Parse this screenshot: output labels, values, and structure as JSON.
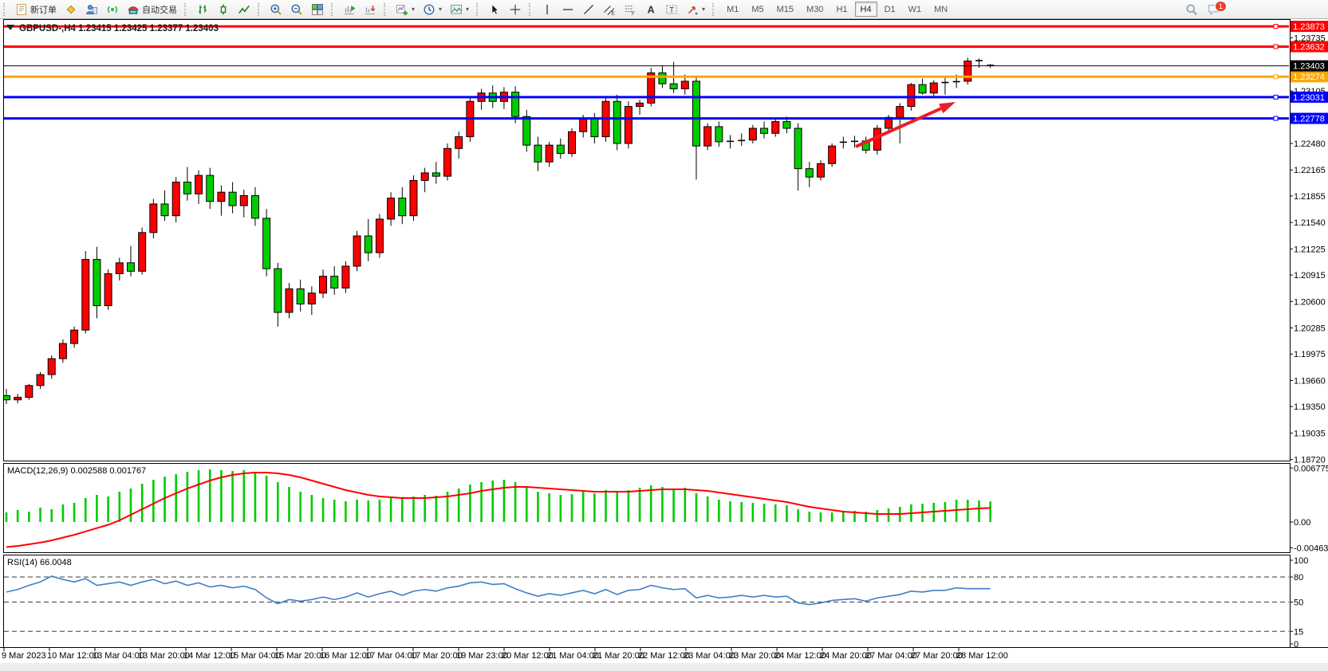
{
  "toolbar": {
    "new_order_label": "新订单",
    "autotrading_label": "自动交易",
    "timeframes": [
      "M1",
      "M5",
      "M15",
      "M30",
      "H1",
      "H4",
      "D1",
      "W1",
      "MN"
    ],
    "active_timeframe": "H4",
    "notification_badge": "1"
  },
  "chart": {
    "title": "GBPUSD-,H4",
    "ohlc_readout": "1.23415 1.23425 1.23377 1.23403"
  },
  "chart_data": {
    "type": "candlestick",
    "symbol": "GBPUSD-",
    "timeframe": "H4",
    "title": "GBPUSD-,H4 1.23415 1.23425 1.23377 1.23403",
    "colors": {
      "up": "#ff0000",
      "down": "#00cc00",
      "wick": "#000000"
    },
    "ohlc": [
      [
        1.1948,
        1.1956,
        1.1938,
        1.1943
      ],
      [
        1.1943,
        1.195,
        1.1939,
        1.1946
      ],
      [
        1.1946,
        1.1962,
        1.1943,
        1.196
      ],
      [
        1.196,
        1.1976,
        1.1956,
        1.1973
      ],
      [
        1.1973,
        1.1996,
        1.1968,
        1.1992
      ],
      [
        1.1992,
        1.2015,
        1.1987,
        1.201
      ],
      [
        1.201,
        1.203,
        1.2005,
        1.2026
      ],
      [
        1.2026,
        1.212,
        1.2022,
        1.211
      ],
      [
        1.211,
        1.2125,
        1.204,
        1.2055
      ],
      [
        1.2055,
        1.2098,
        1.205,
        1.2093
      ],
      [
        1.2093,
        1.2112,
        1.2085,
        1.2106
      ],
      [
        1.2106,
        1.2126,
        1.209,
        1.2096
      ],
      [
        1.2096,
        1.2148,
        1.2092,
        1.2142
      ],
      [
        1.2142,
        1.2182,
        1.2135,
        1.2176
      ],
      [
        1.2176,
        1.2192,
        1.2156,
        1.2162
      ],
      [
        1.2162,
        1.2208,
        1.2154,
        1.2202
      ],
      [
        1.2202,
        1.222,
        1.218,
        1.2188
      ],
      [
        1.2188,
        1.2216,
        1.2176,
        1.221
      ],
      [
        1.221,
        1.2219,
        1.217,
        1.2179
      ],
      [
        1.2179,
        1.2198,
        1.2162,
        1.219
      ],
      [
        1.219,
        1.2202,
        1.2165,
        1.2174
      ],
      [
        1.2174,
        1.2193,
        1.216,
        1.2186
      ],
      [
        1.2186,
        1.2196,
        1.215,
        1.2159
      ],
      [
        1.2159,
        1.217,
        1.209,
        1.2099
      ],
      [
        1.2099,
        1.2106,
        1.203,
        1.2047
      ],
      [
        1.2047,
        1.2082,
        1.204,
        1.2075
      ],
      [
        1.2075,
        1.2086,
        1.2048,
        1.2057
      ],
      [
        1.2057,
        1.2078,
        1.2044,
        1.207
      ],
      [
        1.207,
        1.2098,
        1.2064,
        1.209
      ],
      [
        1.209,
        1.2102,
        1.2068,
        1.2076
      ],
      [
        1.2076,
        1.2108,
        1.207,
        1.2102
      ],
      [
        1.2102,
        1.2144,
        1.2096,
        1.2138
      ],
      [
        1.2138,
        1.2158,
        1.2108,
        1.2118
      ],
      [
        1.2118,
        1.2164,
        1.2112,
        1.2158
      ],
      [
        1.2158,
        1.219,
        1.215,
        1.2183
      ],
      [
        1.2183,
        1.2196,
        1.2152,
        1.2162
      ],
      [
        1.2162,
        1.221,
        1.2156,
        1.2204
      ],
      [
        1.2204,
        1.2219,
        1.219,
        1.2213
      ],
      [
        1.2213,
        1.2226,
        1.22,
        1.2209
      ],
      [
        1.2209,
        1.2248,
        1.2204,
        1.2242
      ],
      [
        1.2242,
        1.2262,
        1.223,
        1.2256
      ],
      [
        1.2256,
        1.2304,
        1.225,
        1.2298
      ],
      [
        1.2298,
        1.2313,
        1.2288,
        1.2308
      ],
      [
        1.2308,
        1.2317,
        1.229,
        1.2298
      ],
      [
        1.2298,
        1.2315,
        1.2289,
        1.2309
      ],
      [
        1.2309,
        1.2316,
        1.2272,
        1.228
      ],
      [
        1.228,
        1.2288,
        1.2238,
        1.2246
      ],
      [
        1.2246,
        1.2256,
        1.2215,
        1.2226
      ],
      [
        1.2226,
        1.225,
        1.222,
        1.2246
      ],
      [
        1.2246,
        1.2254,
        1.223,
        1.2236
      ],
      [
        1.2236,
        1.2266,
        1.2232,
        1.2262
      ],
      [
        1.2262,
        1.2282,
        1.2255,
        1.2278
      ],
      [
        1.2278,
        1.2284,
        1.2248,
        1.2256
      ],
      [
        1.2256,
        1.2304,
        1.225,
        1.2298
      ],
      [
        1.2298,
        1.2306,
        1.224,
        1.2248
      ],
      [
        1.2248,
        1.2298,
        1.2242,
        1.2292
      ],
      [
        1.2292,
        1.23,
        1.2282,
        1.2296
      ],
      [
        1.2296,
        1.2338,
        1.2292,
        1.2332
      ],
      [
        1.2332,
        1.234,
        1.2314,
        1.2319
      ],
      [
        1.2319,
        1.2345,
        1.2308,
        1.2313
      ],
      [
        1.2313,
        1.233,
        1.2306,
        1.2322
      ],
      [
        1.2322,
        1.2328,
        1.2205,
        1.2245
      ],
      [
        1.2245,
        1.2272,
        1.224,
        1.2268
      ],
      [
        1.2268,
        1.2274,
        1.2244,
        1.225
      ],
      [
        1.225,
        1.2258,
        1.2242,
        1.2251
      ],
      [
        1.2251,
        1.226,
        1.2245,
        1.2252
      ],
      [
        1.2252,
        1.227,
        1.2248,
        1.2266
      ],
      [
        1.2266,
        1.2274,
        1.2254,
        1.226
      ],
      [
        1.226,
        1.2278,
        1.2256,
        1.2274
      ],
      [
        1.2274,
        1.228,
        1.226,
        1.2266
      ],
      [
        1.2266,
        1.2272,
        1.2192,
        1.2218
      ],
      [
        1.2218,
        1.2226,
        1.2196,
        1.2208
      ],
      [
        1.2208,
        1.2228,
        1.2204,
        1.2224
      ],
      [
        1.2224,
        1.2248,
        1.222,
        1.2245
      ],
      [
        1.2249,
        1.2256,
        1.2242,
        1.225
      ],
      [
        1.225,
        1.2257,
        1.2243,
        1.2251
      ],
      [
        1.2251,
        1.2256,
        1.2236,
        1.224
      ],
      [
        1.224,
        1.227,
        1.2235,
        1.2266
      ],
      [
        1.2266,
        1.2282,
        1.2262,
        1.2279
      ],
      [
        1.2279,
        1.2296,
        1.2248,
        1.2292
      ],
      [
        1.2292,
        1.232,
        1.2287,
        1.2318
      ],
      [
        1.2318,
        1.2325,
        1.2306,
        1.2308
      ],
      [
        1.2308,
        1.2323,
        1.2302,
        1.232
      ],
      [
        1.232,
        1.2328,
        1.2306,
        1.2321
      ],
      [
        1.2321,
        1.233,
        1.2314,
        1.2322
      ],
      [
        1.2322,
        1.235,
        1.2318,
        1.2346
      ],
      [
        1.2346,
        1.2349,
        1.2338,
        1.2347
      ],
      [
        1.23415,
        1.23425,
        1.23377,
        1.23403
      ]
    ],
    "price_ticks": [
      "1.23735",
      "1.23105",
      "1.22480",
      "1.22165",
      "1.21855",
      "1.21540",
      "1.21225",
      "1.20915",
      "1.20600",
      "1.20285",
      "1.19975",
      "1.19660",
      "1.19350",
      "1.19035",
      "1.18720"
    ],
    "hlines": [
      {
        "price": 1.23873,
        "label": "1.23873",
        "color": "#ff0000"
      },
      {
        "price": 1.23632,
        "label": "1.23632",
        "color": "#ff0000"
      },
      {
        "price": 1.23274,
        "label": "1.23274",
        "color": "#ffa500"
      },
      {
        "price": 1.23031,
        "label": "1.23031",
        "color": "#0000ff"
      },
      {
        "price": 1.22778,
        "label": "1.22778",
        "color": "#0000ff"
      }
    ],
    "current_price": {
      "price": 1.23403,
      "label": "1.23403",
      "color": "#000000"
    },
    "trend_arrow": {
      "from": [
        1073,
        184
      ],
      "to": [
        1198,
        128
      ],
      "color": "#ee1c25"
    },
    "time_labels": [
      "9 Mar 2023",
      "10 Mar 12:00",
      "13 Mar 04:00",
      "13 Mar 20:00",
      "14 Mar 12:00",
      "15 Mar 04:00",
      "15 Mar 20:00",
      "16 Mar 12:00",
      "17 Mar 04:00",
      "17 Mar 20:00",
      "19 Mar 23:00",
      "20 Mar 12:00",
      "21 Mar 04:00",
      "21 Mar 20:00",
      "22 Mar 12:00",
      "23 Mar 04:00",
      "23 Mar 20:00",
      "24 Mar 12:00",
      "24 Mar 20:00",
      "27 Mar 04:00",
      "27 Mar 20:00",
      "28 Mar 12:00"
    ],
    "macd": {
      "label": "MACD(12,26,9) 0.002588 0.001767",
      "ticks": [
        "0.006775",
        "0.00",
        "-0.004633"
      ],
      "hist_color": "#00cc00",
      "signal_color": "#ff0000",
      "histogram": [
        0.0012,
        0.0015,
        0.0013,
        0.0018,
        0.0016,
        0.0022,
        0.0024,
        0.003,
        0.0034,
        0.0032,
        0.0038,
        0.0042,
        0.0048,
        0.0053,
        0.0057,
        0.006,
        0.0063,
        0.0065,
        0.0066,
        0.0065,
        0.0064,
        0.0065,
        0.0063,
        0.0058,
        0.005,
        0.0044,
        0.0038,
        0.0034,
        0.003,
        0.0028,
        0.0026,
        0.0028,
        0.0027,
        0.0028,
        0.003,
        0.0029,
        0.0032,
        0.0034,
        0.0033,
        0.0038,
        0.0042,
        0.0047,
        0.005,
        0.0052,
        0.0053,
        0.005,
        0.0044,
        0.0038,
        0.0036,
        0.0034,
        0.0035,
        0.0038,
        0.0036,
        0.004,
        0.0038,
        0.004,
        0.0043,
        0.0046,
        0.0044,
        0.0042,
        0.0043,
        0.0036,
        0.0032,
        0.0028,
        0.0026,
        0.0025,
        0.0024,
        0.0023,
        0.0022,
        0.0021,
        0.0016,
        0.0013,
        0.0012,
        0.0012,
        0.0013,
        0.0014,
        0.0013,
        0.0015,
        0.0017,
        0.0019,
        0.0022,
        0.0023,
        0.0024,
        0.0025,
        0.0028,
        0.0028,
        0.0027,
        0.002588
      ],
      "signal": [
        -0.0045,
        -0.0043,
        -0.004,
        -0.0037,
        -0.0033,
        -0.0028,
        -0.0023,
        -0.0017,
        -0.0011,
        -0.0005,
        0.0002,
        0.0009,
        0.0016,
        0.0023,
        0.003,
        0.0036,
        0.0042,
        0.0047,
        0.0052,
        0.0056,
        0.0059,
        0.0061,
        0.0062,
        0.0062,
        0.0061,
        0.0059,
        0.0056,
        0.0052,
        0.0048,
        0.0044,
        0.004,
        0.0037,
        0.0034,
        0.0032,
        0.0031,
        0.003,
        0.003,
        0.003,
        0.0031,
        0.0032,
        0.0034,
        0.0036,
        0.0039,
        0.0041,
        0.0043,
        0.0044,
        0.0044,
        0.0043,
        0.0042,
        0.0041,
        0.004,
        0.0039,
        0.0038,
        0.0038,
        0.0038,
        0.0038,
        0.0039,
        0.004,
        0.0041,
        0.0041,
        0.0041,
        0.004,
        0.0039,
        0.0037,
        0.0035,
        0.0033,
        0.0031,
        0.0029,
        0.0027,
        0.0025,
        0.0022,
        0.0019,
        0.0017,
        0.0015,
        0.0013,
        0.0012,
        0.0011,
        0.001,
        0.001,
        0.001,
        0.0011,
        0.0012,
        0.0013,
        0.0014,
        0.0015,
        0.0016,
        0.0017,
        0.001767
      ]
    },
    "rsi": {
      "label": "RSI(14) 66.0048",
      "ticks": [
        "100",
        "80",
        "50",
        "15",
        "0"
      ],
      "levels": [
        80,
        50,
        15
      ],
      "color": "#3f7ec9",
      "values": [
        62,
        65,
        70,
        74,
        81,
        77,
        74,
        78,
        70,
        72,
        74,
        70,
        74,
        77,
        72,
        75,
        70,
        73,
        68,
        70,
        67,
        69,
        65,
        55,
        48,
        53,
        51,
        53,
        56,
        53,
        56,
        61,
        56,
        60,
        63,
        58,
        63,
        65,
        63,
        67,
        69,
        73,
        74,
        71,
        72,
        66,
        61,
        57,
        60,
        58,
        61,
        64,
        60,
        65,
        59,
        64,
        65,
        70,
        67,
        65,
        66,
        55,
        58,
        55,
        56,
        58,
        56,
        58,
        56,
        57,
        49,
        47,
        49,
        52,
        53,
        54,
        51,
        55,
        57,
        59,
        63,
        62,
        64,
        64,
        67,
        66,
        66,
        66.0048
      ]
    }
  }
}
